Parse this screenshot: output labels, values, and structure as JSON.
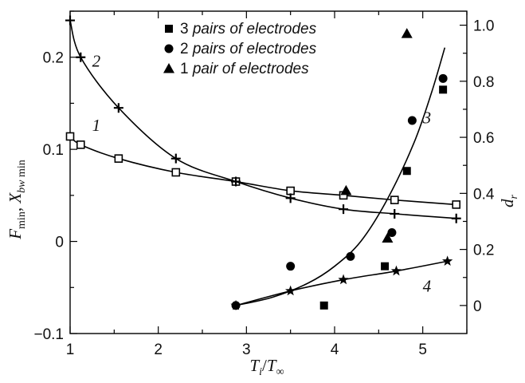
{
  "chart_data": {
    "type": "scatter",
    "xlabel": "T_i/T_∞",
    "ylabel_left": "F_min, X_bw min",
    "ylabel_right": "d_r",
    "xlim": [
      1,
      5.5
    ],
    "ylim_left": [
      -0.1,
      0.25
    ],
    "ylim_right": [
      -0.1,
      1.05
    ],
    "x_ticks": [
      1,
      2,
      3,
      4,
      5
    ],
    "y_left_ticks": [
      -0.1,
      0,
      0.1,
      0.2
    ],
    "y_right_ticks": [
      0,
      0.2,
      0.4,
      0.6,
      0.8,
      1.0
    ],
    "grid": false,
    "legend": {
      "position": "top-right",
      "entries": [
        {
          "number": "3",
          "text": "pairs of electrodes",
          "marker": "square"
        },
        {
          "number": "2",
          "text": "pairs of electrodes",
          "marker": "circle"
        },
        {
          "number": "1",
          "text": "pair of electrodes",
          "marker": "triangle"
        }
      ]
    },
    "curves": [
      {
        "name": "1",
        "axis": "left",
        "marker": "open-square",
        "x": [
          1.0,
          1.12,
          1.55,
          2.2,
          2.88,
          3.5,
          4.1,
          4.68,
          5.38
        ],
        "y": [
          0.114,
          0.105,
          0.09,
          0.075,
          0.065,
          0.055,
          0.05,
          0.045,
          0.04
        ]
      },
      {
        "name": "2",
        "axis": "left",
        "marker": "plus",
        "x": [
          1.0,
          1.12,
          1.55,
          2.2,
          2.88,
          3.5,
          4.1,
          4.68,
          5.38
        ],
        "y": [
          0.24,
          0.2,
          0.145,
          0.09,
          0.065,
          0.047,
          0.035,
          0.03,
          0.025
        ]
      },
      {
        "name": "3",
        "axis": "right",
        "marker": "none",
        "x": [
          2.88,
          3.3,
          3.7,
          4.0,
          4.3,
          4.6,
          4.9,
          5.1,
          5.25
        ],
        "y": [
          0.0,
          0.03,
          0.08,
          0.14,
          0.23,
          0.38,
          0.58,
          0.76,
          0.92
        ]
      },
      {
        "name": "4",
        "axis": "right",
        "marker": "star",
        "x": [
          2.88,
          3.5,
          4.1,
          4.7,
          5.28
        ],
        "y": [
          0.0,
          0.052,
          0.092,
          0.123,
          0.158
        ]
      }
    ],
    "scatter_series": [
      {
        "legend": "3 pairs of electrodes",
        "marker": "square",
        "x": [
          3.88,
          4.57,
          4.82,
          5.23
        ],
        "y": [
          0.0,
          0.14,
          0.48,
          0.77
        ]
      },
      {
        "legend": "2 pairs of electrodes",
        "marker": "circle",
        "x": [
          2.88,
          3.5,
          4.18,
          4.65,
          4.88,
          5.23
        ],
        "y": [
          0.0,
          0.14,
          0.175,
          0.26,
          0.66,
          0.81
        ]
      },
      {
        "legend": "1 pair of electrodes",
        "marker": "triangle",
        "x": [
          4.13,
          4.6,
          4.82
        ],
        "y": [
          0.41,
          0.24,
          0.97
        ]
      }
    ]
  }
}
